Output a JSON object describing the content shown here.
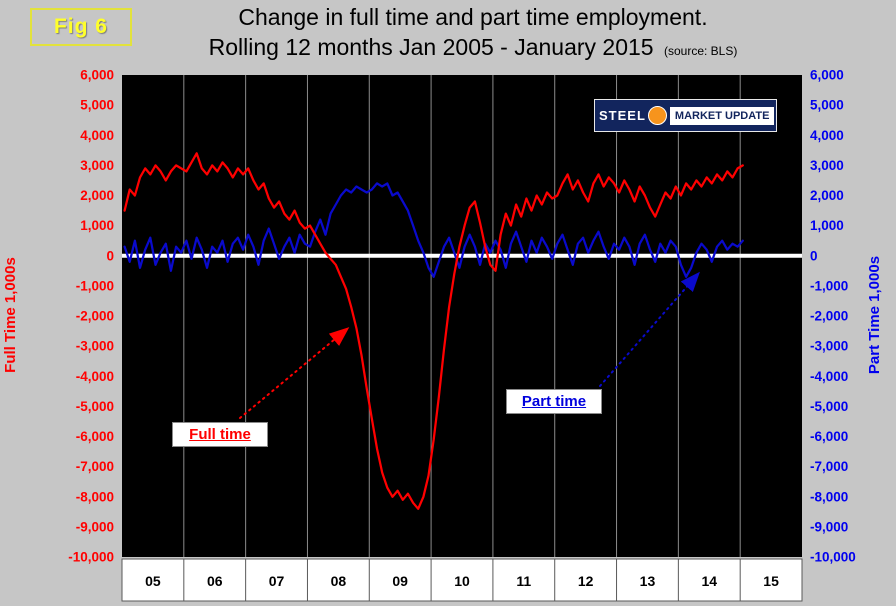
{
  "fig_label": "Fig 6",
  "title": {
    "line1": "Change in full time and part time employment.",
    "line2": "Rolling 12 months Jan 2005 - January 2015",
    "source": "(source: BLS)"
  },
  "logo": {
    "steel": "STEEL",
    "market": "MARKET",
    "update": "UPDATE"
  },
  "axes": {
    "left_title": "Full Time 1,000s",
    "right_title": "Part Time 1,000s",
    "ytick_labels": [
      "6,000",
      "5,000",
      "4,000",
      "3,000",
      "2,000",
      "1,000",
      "0",
      "-1,000",
      "-2,000",
      "-3,000",
      "-4,000",
      "-5,000",
      "-6,000",
      "-7,000",
      "-8,000",
      "-9,000",
      "-10,000"
    ],
    "x_year_labels": [
      "05",
      "06",
      "07",
      "08",
      "09",
      "10",
      "11",
      "12",
      "13",
      "14",
      "15"
    ]
  },
  "annotations": {
    "full_time_label": "Full time",
    "part_time_label": "Part time"
  },
  "colors": {
    "page_bg": "#c6c6c6",
    "plot_bg": "#000000",
    "grid": "#8c8c8c",
    "zero_line": "#ffffff",
    "full_time": "#ff0000",
    "part_time": "#0a0acc",
    "left_axis_text": "#ff0000",
    "right_axis_text": "#0000ee",
    "axis_strip_bg": "#ffffff",
    "axis_strip_line": "#595959"
  },
  "chart_data": {
    "type": "line",
    "title": "Change in full time and part time employment. Rolling 12 months Jan 2005 - January 2015",
    "source": "BLS",
    "x_unit": "month",
    "x_start": "2005-01",
    "x_end": "2015-01",
    "ylim": [
      -10000,
      6000
    ],
    "ytick_step": 1000,
    "grid": "vertical-year-lines",
    "legend_position": "in-plot-callouts",
    "x_year_labels": [
      "05",
      "06",
      "07",
      "08",
      "09",
      "10",
      "11",
      "12",
      "13",
      "14",
      "15"
    ],
    "series": [
      {
        "name": "Full time",
        "axis": "left",
        "color": "#ff0000",
        "values": [
          1500,
          2200,
          2000,
          2600,
          2900,
          2700,
          3000,
          2800,
          2500,
          2800,
          3000,
          2900,
          2800,
          3100,
          3400,
          2900,
          2700,
          3000,
          2800,
          3100,
          2900,
          2600,
          2900,
          2700,
          2900,
          2500,
          2200,
          2400,
          1900,
          1600,
          1800,
          1400,
          1200,
          1500,
          1100,
          900,
          1000,
          700,
          400,
          100,
          -100,
          -300,
          -700,
          -1100,
          -1700,
          -2400,
          -3300,
          -4400,
          -5400,
          -6400,
          -7200,
          -7700,
          -8000,
          -7800,
          -8100,
          -7900,
          -8200,
          -8400,
          -8000,
          -7300,
          -6100,
          -4700,
          -3100,
          -1700,
          -600,
          300,
          1000,
          1600,
          1800,
          1100,
          300,
          -300,
          -500,
          700,
          1400,
          1000,
          1700,
          1300,
          1900,
          1500,
          2000,
          1700,
          2100,
          1900,
          2000,
          2400,
          2700,
          2200,
          2500,
          2100,
          1800,
          2400,
          2700,
          2300,
          2600,
          2400,
          2100,
          2500,
          2200,
          1800,
          2300,
          2000,
          1600,
          1300,
          1700,
          2100,
          1900,
          2300,
          2000,
          2400,
          2200,
          2500,
          2300,
          2600,
          2400,
          2700,
          2500,
          2800,
          2600,
          2900,
          3000
        ]
      },
      {
        "name": "Part time",
        "axis": "right",
        "color": "#0a0acc",
        "values": [
          300,
          -200,
          500,
          -400,
          200,
          600,
          -300,
          100,
          400,
          -500,
          300,
          100,
          500,
          -100,
          600,
          200,
          -400,
          300,
          100,
          500,
          -200,
          400,
          600,
          200,
          700,
          300,
          -300,
          500,
          900,
          400,
          -100,
          300,
          600,
          100,
          700,
          400,
          300,
          800,
          1200,
          700,
          1400,
          1700,
          2000,
          2200,
          2100,
          2300,
          2200,
          2100,
          2200,
          2400,
          2300,
          2400,
          2000,
          2100,
          1800,
          1500,
          1000,
          500,
          100,
          -400,
          -700,
          -200,
          300,
          600,
          100,
          -400,
          300,
          700,
          300,
          -300,
          400,
          100,
          500,
          200,
          -400,
          400,
          800,
          300,
          -200,
          500,
          100,
          600,
          300,
          -100,
          400,
          700,
          200,
          -300,
          400,
          600,
          100,
          500,
          800,
          300,
          -100,
          400,
          200,
          600,
          300,
          -300,
          400,
          700,
          200,
          -200,
          400,
          100,
          500,
          300,
          -300,
          -700,
          -400,
          100,
          400,
          200,
          -200,
          300,
          500,
          200,
          400,
          300,
          500
        ]
      }
    ]
  }
}
